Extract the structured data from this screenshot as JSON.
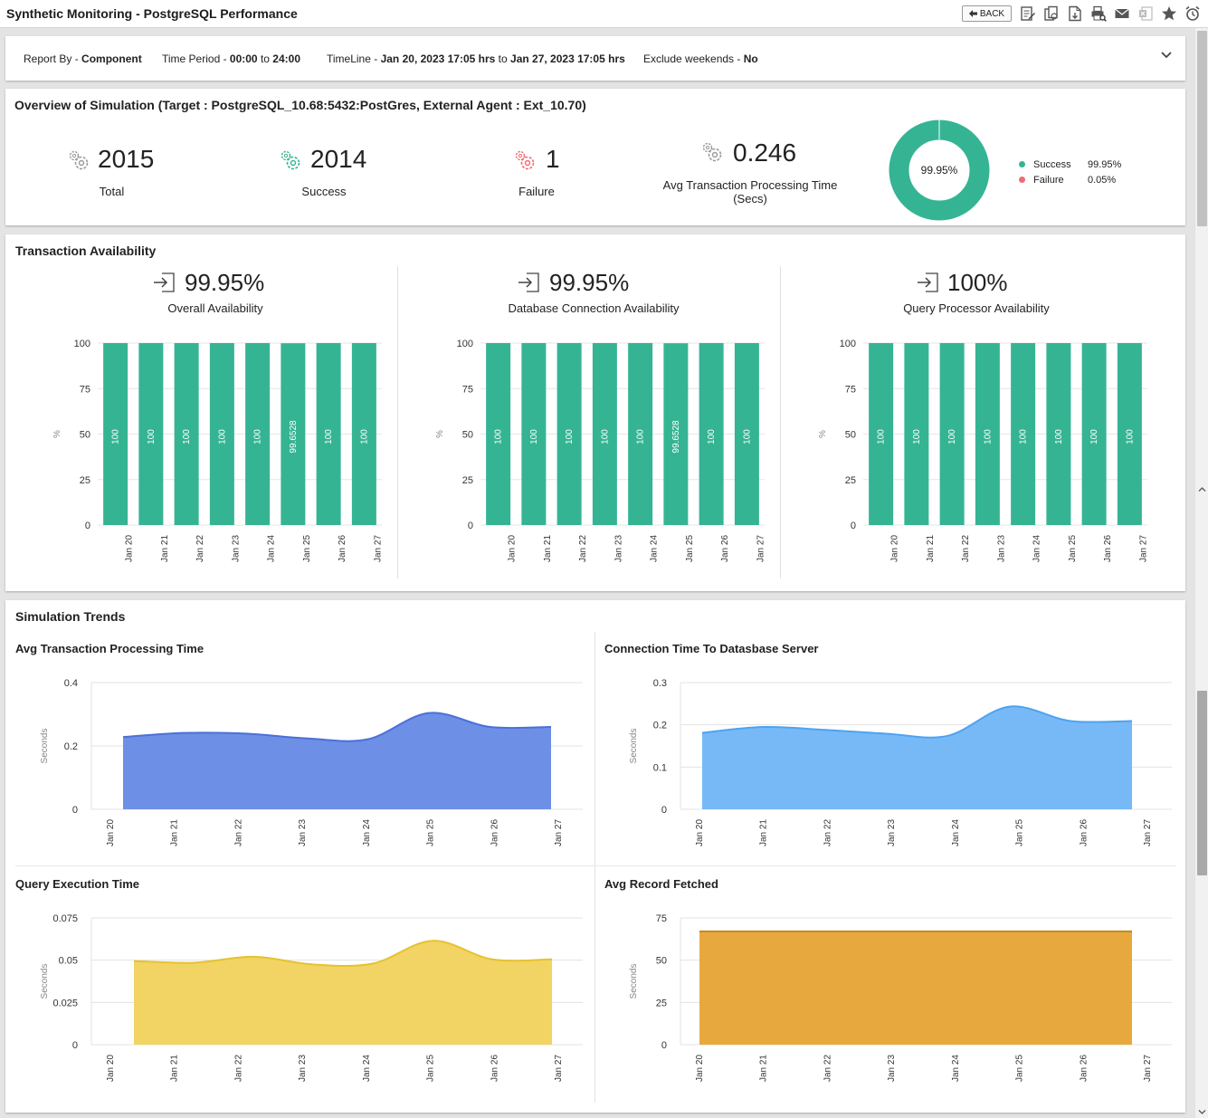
{
  "app": {
    "title": "Synthetic Monitoring - PostgreSQL Performance",
    "back_label": "BACK",
    "toolbar_icons": [
      "edit-report-icon",
      "copy-report-icon",
      "pdf-export-icon",
      "print-preview-icon",
      "email-icon",
      "excel-export-icon",
      "favorite-star-icon",
      "schedule-alarm-icon"
    ]
  },
  "filters": {
    "report_by_label": "Report By - ",
    "report_by_value": "Component",
    "time_period_label": "Time Period - ",
    "time_period_value": "00:00",
    "time_period_to": " to ",
    "time_period_end": "24:00",
    "timeline_label": "TimeLine - ",
    "timeline_start": "Jan 20, 2023 17:05 hrs",
    "timeline_to": " to ",
    "timeline_end": "Jan 27, 2023 17:05 hrs",
    "exclude_label": "Exclude weekends - ",
    "exclude_value": "No"
  },
  "overview": {
    "title": "Overview of Simulation (Target : PostgreSQL_10.68:5432:PostGres, External Agent : Ext_10.70)",
    "total": "2015",
    "total_label": "Total",
    "success": "2014",
    "success_label": "Success",
    "failure": "1",
    "failure_label": "Failure",
    "avg_time": "0.246",
    "avg_time_label_1": "Avg Transaction Processing Time",
    "avg_time_label_2": "(Secs)",
    "donut_center": "99.95%",
    "legend": [
      {
        "name": "Success",
        "value": "99.95%",
        "color": "#35b494",
        "fraction": 0.9995
      },
      {
        "name": "Failure",
        "value": "0.05%",
        "color": "#ef6b73",
        "fraction": 0.0005
      }
    ]
  },
  "availability": {
    "title": "Transaction Availability",
    "panels": [
      {
        "value": "99.95%",
        "label": "Overall Availability"
      },
      {
        "value": "99.95%",
        "label": "Database Connection Availability"
      },
      {
        "value": "100%",
        "label": "Query Processor Availability"
      }
    ]
  },
  "trends": {
    "title": "Simulation Trends",
    "charts": [
      {
        "title": "Avg Transaction Processing Time"
      },
      {
        "title": "Connection Time To Datasbase Server"
      },
      {
        "title": "Query Execution Time"
      },
      {
        "title": "Avg Record Fetched"
      }
    ]
  },
  "chart_data": [
    {
      "type": "bar",
      "categories": [
        "Jan 20",
        "Jan 21",
        "Jan 22",
        "Jan 23",
        "Jan 24",
        "Jan 25",
        "Jan 26",
        "Jan 27"
      ],
      "series": [
        {
          "values": [
            100,
            100,
            100,
            100,
            100,
            99.6528,
            100,
            100
          ],
          "color": "#35b494"
        },
        {
          "values": [
            0,
            0,
            0,
            0,
            0,
            0.3472,
            0,
            0
          ],
          "color": "#ef6b73"
        }
      ],
      "data_labels": [
        "100",
        "100",
        "100",
        "100",
        "100",
        "99.6528",
        "100",
        "100"
      ],
      "stacked": true,
      "ylabel": "%",
      "ylim": [
        0,
        100
      ],
      "yticks": [
        "0",
        "25",
        "50",
        "75",
        "100"
      ]
    },
    {
      "type": "bar",
      "categories": [
        "Jan 20",
        "Jan 21",
        "Jan 22",
        "Jan 23",
        "Jan 24",
        "Jan 25",
        "Jan 26",
        "Jan 27"
      ],
      "series": [
        {
          "values": [
            100,
            100,
            100,
            100,
            100,
            99.6528,
            100,
            100
          ],
          "color": "#35b494"
        },
        {
          "values": [
            0,
            0,
            0,
            0,
            0,
            0.3472,
            0,
            0
          ],
          "color": "#ef6b73"
        }
      ],
      "data_labels": [
        "100",
        "100",
        "100",
        "100",
        "100",
        "99.6528",
        "100",
        "100"
      ],
      "stacked": true,
      "ylabel": "%",
      "ylim": [
        0,
        100
      ],
      "yticks": [
        "0",
        "25",
        "50",
        "75",
        "100"
      ]
    },
    {
      "type": "bar",
      "categories": [
        "Jan 20",
        "Jan 21",
        "Jan 22",
        "Jan 23",
        "Jan 24",
        "Jan 25",
        "Jan 26",
        "Jan 27"
      ],
      "series": [
        {
          "values": [
            100,
            100,
            100,
            100,
            100,
            100,
            100,
            100
          ],
          "color": "#35b494"
        }
      ],
      "data_labels": [
        "100",
        "100",
        "100",
        "100",
        "100",
        "100",
        "100",
        "100"
      ],
      "stacked": true,
      "ylabel": "%",
      "ylim": [
        0,
        100
      ],
      "yticks": [
        "0",
        "25",
        "50",
        "75",
        "100"
      ]
    },
    {
      "type": "area",
      "title": "Avg Transaction Processing Time",
      "categories": [
        "Jan 20",
        "Jan 21",
        "Jan 22",
        "Jan 23",
        "Jan 24",
        "Jan 25",
        "Jan 26",
        "Jan 27"
      ],
      "values": [
        0.228,
        0.241,
        0.239,
        0.224,
        0.221,
        0.304,
        0.26,
        0.26
      ],
      "color": "#6d8fe6",
      "line_color": "#4b70d8",
      "ylabel": "Seconds",
      "ylim": [
        0,
        0.4
      ],
      "yticks": [
        "0",
        "0.2",
        "0.4"
      ]
    },
    {
      "type": "area",
      "title": "Connection Time To Datasbase Server",
      "categories": [
        "Jan 20",
        "Jan 21",
        "Jan 22",
        "Jan 23",
        "Jan 24",
        "Jan 25",
        "Jan 26",
        "Jan 27"
      ],
      "values": [
        0.181,
        0.195,
        0.188,
        0.179,
        0.174,
        0.243,
        0.209,
        0.209
      ],
      "color": "#77b9f7",
      "line_color": "#4ea3f0",
      "ylabel": "Seconds",
      "ylim": [
        0,
        0.3
      ],
      "yticks": [
        "0",
        "0.1",
        "0.2",
        "0.3"
      ]
    },
    {
      "type": "area",
      "title": "Query Execution Time",
      "categories": [
        "Jan 20",
        "Jan 21",
        "Jan 22",
        "Jan 23",
        "Jan 24",
        "Jan 25",
        "Jan 26",
        "Jan 27"
      ],
      "values": [
        0.0495,
        0.0485,
        0.052,
        0.0475,
        0.048,
        0.0615,
        0.0505,
        0.0505
      ],
      "color": "#f1d464",
      "line_color": "#e6c230",
      "ylabel": "Seconds",
      "ylim": [
        0,
        0.075
      ],
      "yticks": [
        "0",
        "0.025",
        "0.05",
        "0.075"
      ]
    },
    {
      "type": "area",
      "title": "Avg Record Fetched",
      "categories": [
        "Jan 20",
        "Jan 21",
        "Jan 22",
        "Jan 23",
        "Jan 24",
        "Jan 25",
        "Jan 26",
        "Jan 27"
      ],
      "values": [
        67,
        67,
        67,
        67,
        67,
        67,
        67,
        67
      ],
      "color": "#e7a93d",
      "line_color": "#c9861c",
      "ylabel": "Seconds",
      "ylim": [
        0,
        75
      ],
      "yticks": [
        "0",
        "25",
        "50",
        "75"
      ]
    }
  ]
}
